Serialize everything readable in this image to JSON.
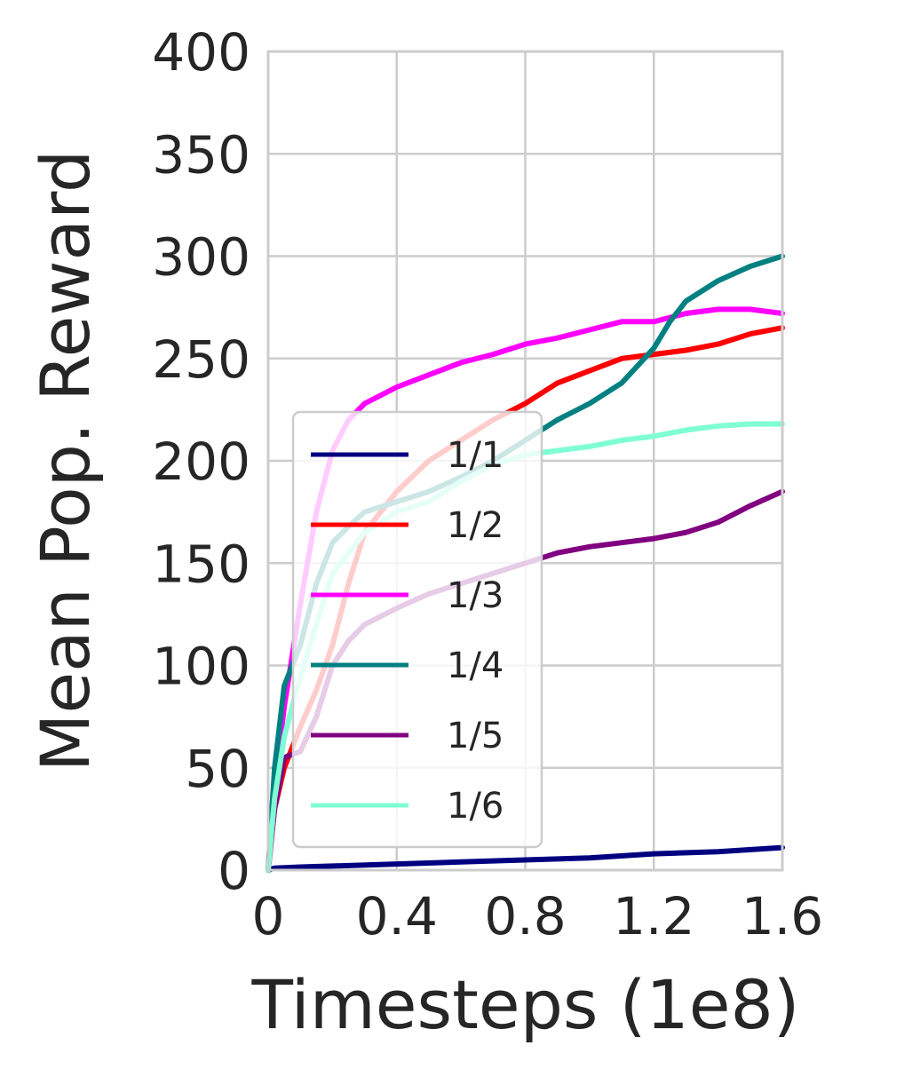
{
  "chart_data": {
    "type": "line",
    "title": "",
    "xlabel": "Timesteps (1e8)",
    "ylabel": "Mean Pop. Reward",
    "xlim": [
      0,
      1.6
    ],
    "ylim": [
      0,
      400
    ],
    "x_ticks": [
      "0",
      "0.4",
      "0.8",
      "1.2",
      "1.6"
    ],
    "x_tick_values": [
      0,
      0.4,
      0.8,
      1.2,
      1.6
    ],
    "y_ticks": [
      "0",
      "50",
      "100",
      "150",
      "200",
      "250",
      "300",
      "350",
      "400"
    ],
    "y_tick_values": [
      0,
      50,
      100,
      150,
      200,
      250,
      300,
      350,
      400
    ],
    "grid": true,
    "legend_position": "lower-left",
    "series": [
      {
        "name": "1/1",
        "color": "#000080",
        "x": [
          0,
          0.02,
          0.1,
          0.2,
          0.4,
          0.6,
          0.8,
          1.0,
          1.2,
          1.4,
          1.6
        ],
        "y": [
          0,
          1,
          1.5,
          2,
          3,
          4,
          5,
          6,
          8,
          9,
          11
        ]
      },
      {
        "name": "1/2",
        "color": "#ff0000",
        "x": [
          0,
          0.02,
          0.05,
          0.1,
          0.15,
          0.2,
          0.25,
          0.3,
          0.4,
          0.5,
          0.6,
          0.7,
          0.8,
          0.9,
          1.0,
          1.1,
          1.2,
          1.3,
          1.4,
          1.5,
          1.6
        ],
        "y": [
          0,
          30,
          50,
          70,
          88,
          110,
          140,
          165,
          185,
          200,
          210,
          220,
          228,
          238,
          244,
          250,
          252,
          254,
          257,
          262,
          265
        ]
      },
      {
        "name": "1/3",
        "color": "#ff00ff",
        "x": [
          0,
          0.02,
          0.05,
          0.1,
          0.15,
          0.2,
          0.25,
          0.3,
          0.4,
          0.5,
          0.6,
          0.7,
          0.8,
          0.9,
          1.0,
          1.1,
          1.2,
          1.3,
          1.4,
          1.5,
          1.6
        ],
        "y": [
          0,
          40,
          80,
          130,
          175,
          205,
          220,
          228,
          236,
          242,
          248,
          252,
          257,
          260,
          264,
          268,
          268,
          272,
          274,
          274,
          272
        ]
      },
      {
        "name": "1/4",
        "color": "#008080",
        "x": [
          0,
          0.02,
          0.05,
          0.1,
          0.15,
          0.2,
          0.25,
          0.3,
          0.4,
          0.5,
          0.6,
          0.7,
          0.8,
          0.9,
          1.0,
          1.1,
          1.2,
          1.25,
          1.3,
          1.4,
          1.5,
          1.6
        ],
        "y": [
          0,
          50,
          90,
          110,
          140,
          160,
          168,
          175,
          180,
          185,
          192,
          200,
          210,
          220,
          228,
          238,
          255,
          268,
          278,
          288,
          295,
          300
        ]
      },
      {
        "name": "1/5",
        "color": "#800080",
        "x": [
          0,
          0.02,
          0.05,
          0.1,
          0.15,
          0.2,
          0.25,
          0.3,
          0.4,
          0.5,
          0.6,
          0.7,
          0.8,
          0.9,
          1.0,
          1.1,
          1.2,
          1.3,
          1.4,
          1.5,
          1.6
        ],
        "y": [
          0,
          30,
          55,
          58,
          75,
          100,
          112,
          120,
          128,
          135,
          140,
          145,
          150,
          155,
          158,
          160,
          162,
          165,
          170,
          178,
          185
        ]
      },
      {
        "name": "1/6",
        "color": "#7fffd4",
        "x": [
          0,
          0.02,
          0.05,
          0.1,
          0.15,
          0.2,
          0.25,
          0.3,
          0.4,
          0.5,
          0.6,
          0.7,
          0.8,
          0.9,
          1.0,
          1.1,
          1.2,
          1.3,
          1.4,
          1.5,
          1.6
        ],
        "y": [
          0,
          35,
          65,
          95,
          120,
          145,
          155,
          165,
          175,
          180,
          190,
          198,
          203,
          205,
          207,
          210,
          212,
          215,
          217,
          218,
          218
        ]
      }
    ]
  }
}
